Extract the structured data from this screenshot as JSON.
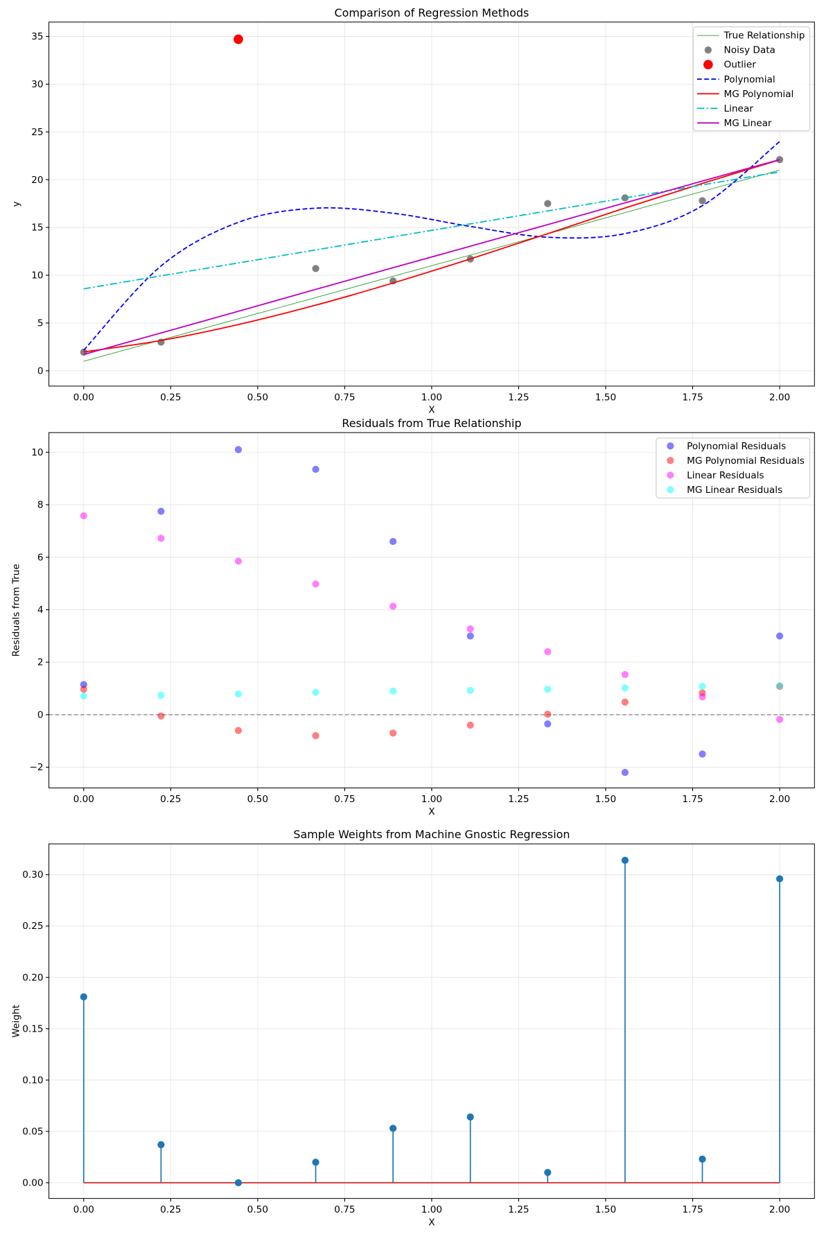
{
  "chart_data": [
    {
      "type": "line",
      "title": "Comparison of Regression Methods",
      "xlabel": "X",
      "ylabel": "y",
      "xlim": [
        -0.1,
        2.1
      ],
      "ylim": [
        -1.6,
        36.5
      ],
      "xticks": [
        "0.00",
        "0.25",
        "0.50",
        "0.75",
        "1.00",
        "1.25",
        "1.50",
        "1.75",
        "2.00"
      ],
      "yticks": [
        "0",
        "5",
        "10",
        "15",
        "20",
        "25",
        "30",
        "35"
      ],
      "grid": true,
      "legend_position": "top-right",
      "x": [
        0,
        0.2222,
        0.4444,
        0.6667,
        0.8889,
        1.1111,
        1.3333,
        1.5556,
        1.7778,
        2.0
      ],
      "series": [
        {
          "name": "True Relationship",
          "kind": "line",
          "color": "#2ca02c",
          "values": [
            1.0,
            3.22,
            5.44,
            7.67,
            9.89,
            12.11,
            14.33,
            16.56,
            18.78,
            21.0
          ]
        },
        {
          "name": "Noisy Data",
          "kind": "scatter",
          "color": "#808080",
          "values": [
            1.95,
            3.0,
            null,
            10.7,
            9.4,
            11.7,
            17.5,
            18.1,
            17.8,
            22.1
          ]
        },
        {
          "name": "Outlier",
          "kind": "scatter",
          "color": "#ff0000",
          "values": [
            null,
            null,
            34.7,
            null,
            null,
            null,
            null,
            null,
            null,
            null
          ]
        },
        {
          "name": "Polynomial",
          "kind": "line",
          "style": "dashed",
          "color": "#0000ff",
          "values": [
            2.15,
            10.97,
            15.54,
            17.02,
            16.49,
            15.11,
            13.98,
            14.36,
            17.28,
            24.0
          ]
        },
        {
          "name": "MG Polynomial",
          "kind": "line",
          "color": "#ff0000",
          "values": [
            1.97,
            3.17,
            4.84,
            6.87,
            9.19,
            11.71,
            14.35,
            17.04,
            19.61,
            22.08
          ]
        },
        {
          "name": "Linear",
          "kind": "line",
          "style": "dashdot",
          "color": "#00bfbf",
          "values": [
            8.58,
            9.94,
            11.29,
            12.65,
            14.02,
            15.38,
            16.73,
            18.09,
            19.46,
            20.82
          ]
        },
        {
          "name": "MG Linear",
          "kind": "line",
          "color": "#bf00bf",
          "values": [
            1.71,
            3.96,
            6.23,
            8.52,
            10.79,
            13.04,
            15.3,
            17.58,
            19.86,
            22.1
          ]
        }
      ]
    },
    {
      "type": "scatter",
      "title": "Residuals from True Relationship",
      "xlabel": "X",
      "ylabel": "Residuals from True",
      "xlim": [
        -0.1,
        2.1
      ],
      "ylim": [
        -2.79,
        10.75
      ],
      "xticks": [
        "0.00",
        "0.25",
        "0.50",
        "0.75",
        "1.00",
        "1.25",
        "1.50",
        "1.75",
        "2.00"
      ],
      "yticks": [
        "−2",
        "0",
        "2",
        "4",
        "6",
        "8",
        "10"
      ],
      "grid": true,
      "reference_line": 0,
      "legend_position": "top-right",
      "x": [
        0,
        0.2222,
        0.4444,
        0.6667,
        0.8889,
        1.1111,
        1.3333,
        1.5556,
        1.7778,
        2.0
      ],
      "series": [
        {
          "name": "Polynomial Residuals",
          "color": "#0000ff",
          "values": [
            1.15,
            7.75,
            10.1,
            9.35,
            6.6,
            3.0,
            -0.35,
            -2.2,
            -1.5,
            3.0
          ]
        },
        {
          "name": "MG Polynomial Residuals",
          "color": "#ff0000",
          "values": [
            0.97,
            -0.05,
            -0.6,
            -0.8,
            -0.7,
            -0.4,
            0.02,
            0.48,
            0.83,
            1.08
          ]
        },
        {
          "name": "Linear Residuals",
          "color": "#ff00ff",
          "values": [
            7.58,
            6.72,
            5.85,
            4.98,
            4.13,
            3.27,
            2.4,
            1.53,
            0.68,
            -0.18
          ]
        },
        {
          "name": "MG Linear Residuals",
          "color": "#00ffff",
          "values": [
            0.71,
            0.74,
            0.79,
            0.85,
            0.9,
            0.93,
            0.97,
            1.02,
            1.08,
            1.1
          ]
        }
      ]
    },
    {
      "type": "stem",
      "title": "Sample Weights from Machine Gnostic Regression",
      "xlabel": "X",
      "ylabel": "Weight",
      "xlim": [
        -0.1,
        2.1
      ],
      "ylim": [
        -0.0153,
        0.33
      ],
      "xticks": [
        "0.00",
        "0.25",
        "0.50",
        "0.75",
        "1.00",
        "1.25",
        "1.50",
        "1.75",
        "2.00"
      ],
      "yticks": [
        "0.00",
        "0.05",
        "0.10",
        "0.15",
        "0.20",
        "0.25",
        "0.30"
      ],
      "grid": true,
      "stem_color": "#1f77b4",
      "baseline_color": "#d62728",
      "x": [
        0,
        0.2222,
        0.4444,
        0.6667,
        0.8889,
        1.1111,
        1.3333,
        1.5556,
        1.7778,
        2.0
      ],
      "values": [
        0.181,
        0.037,
        0.0,
        0.02,
        0.053,
        0.064,
        0.01,
        0.314,
        0.023,
        0.296
      ]
    }
  ]
}
